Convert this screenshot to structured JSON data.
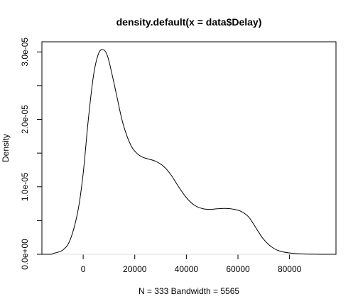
{
  "chart_data": {
    "type": "line",
    "title": "density.default(x = data$Delay)",
    "xlabel": "N = 333   Bandwidth = 5565",
    "ylabel": "Density",
    "xlim": [
      -16000,
      98000
    ],
    "ylim": [
      0.0,
      3.15e-05
    ],
    "x_ticks": [
      0,
      20000,
      40000,
      60000,
      80000
    ],
    "x_tick_labels": [
      "0",
      "20000",
      "40000",
      "60000",
      "80000"
    ],
    "y_ticks": [
      0,
      1e-05,
      2e-05,
      3e-05
    ],
    "y_tick_labels": [
      "0.0e+00",
      "1.0e-05",
      "2.0e-05",
      "3.0e-05"
    ],
    "y_minor_ticks": [
      5e-06,
      1.5e-05,
      2.5e-05
    ],
    "grid": false,
    "line_color": "#000000",
    "series": [
      {
        "x": [
          -12000,
          -8000,
          -5000,
          -2000,
          0,
          2000,
          4000,
          6000,
          8000,
          9500,
          11000,
          13000,
          15000,
          17000,
          19000,
          21000,
          23000,
          25000,
          28000,
          31000,
          34000,
          37000,
          40000,
          43000,
          46000,
          49000,
          52000,
          55000,
          58000,
          61000,
          64000,
          66000,
          68000,
          70000,
          73000,
          76000,
          80000,
          85000,
          90000,
          95000
        ],
        "y": [
          1e-07,
          6e-07,
          2.2e-06,
          6.5e-06,
          1.2e-05,
          2e-05,
          2.65e-05,
          2.98e-05,
          3.03e-05,
          2.93e-05,
          2.7e-05,
          2.35e-05,
          2e-05,
          1.75e-05,
          1.58e-05,
          1.49e-05,
          1.44e-05,
          1.415e-05,
          1.38e-05,
          1.31e-05,
          1.18e-05,
          1e-05,
          8.4e-06,
          7.3e-06,
          6.8e-06,
          6.65e-06,
          6.75e-06,
          6.8e-06,
          6.7e-06,
          6.4e-06,
          5.6e-06,
          4.5e-06,
          3.3e-06,
          2.2e-06,
          1.1e-06,
          5e-07,
          2e-07,
          5e-08,
          1e-08,
          0
        ]
      }
    ]
  }
}
